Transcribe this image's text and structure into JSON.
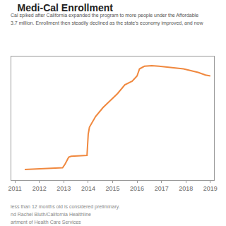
{
  "chart_data": {
    "type": "line",
    "title": "Medi-Cal Enrollment",
    "subtitle": [
      "Cal spiked after California expanded the program to more people under the Affordable",
      "3.7 million. Enrollment then steadily declined as the state's economy improved, and now"
    ],
    "notes": [
      "less than 12 months old is considered preliminary.",
      "nd Rachel Bluth/California Healthline",
      "artment of Health Care Services"
    ],
    "x": [
      2011.4,
      2011.8,
      2012.2,
      2012.6,
      2012.95,
      2013.05,
      2013.2,
      2013.3,
      2013.6,
      2013.95,
      2014.0,
      2014.05,
      2014.3,
      2014.6,
      2014.9,
      2015.2,
      2015.5,
      2015.8,
      2016.0,
      2016.1,
      2016.3,
      2016.6,
      2016.9,
      2017.2,
      2017.6,
      2017.9,
      2018.2,
      2018.5,
      2018.8,
      2019.0
    ],
    "values": [
      7.6,
      7.62,
      7.65,
      7.68,
      7.7,
      7.9,
      8.3,
      8.35,
      8.38,
      8.4,
      9.6,
      10.0,
      10.6,
      11.1,
      11.5,
      11.9,
      12.4,
      12.6,
      12.9,
      13.3,
      13.45,
      13.48,
      13.45,
      13.4,
      13.35,
      13.3,
      13.2,
      13.1,
      12.95,
      12.9
    ],
    "color": "#f0883e",
    "xlim": [
      2010.85,
      2019.15
    ],
    "xticks": [
      2011,
      2012,
      2013,
      2014,
      2015,
      2016,
      2017,
      2018,
      2019
    ],
    "ylim": [
      7,
      14
    ],
    "grid": false,
    "tick_labels": "x"
  }
}
